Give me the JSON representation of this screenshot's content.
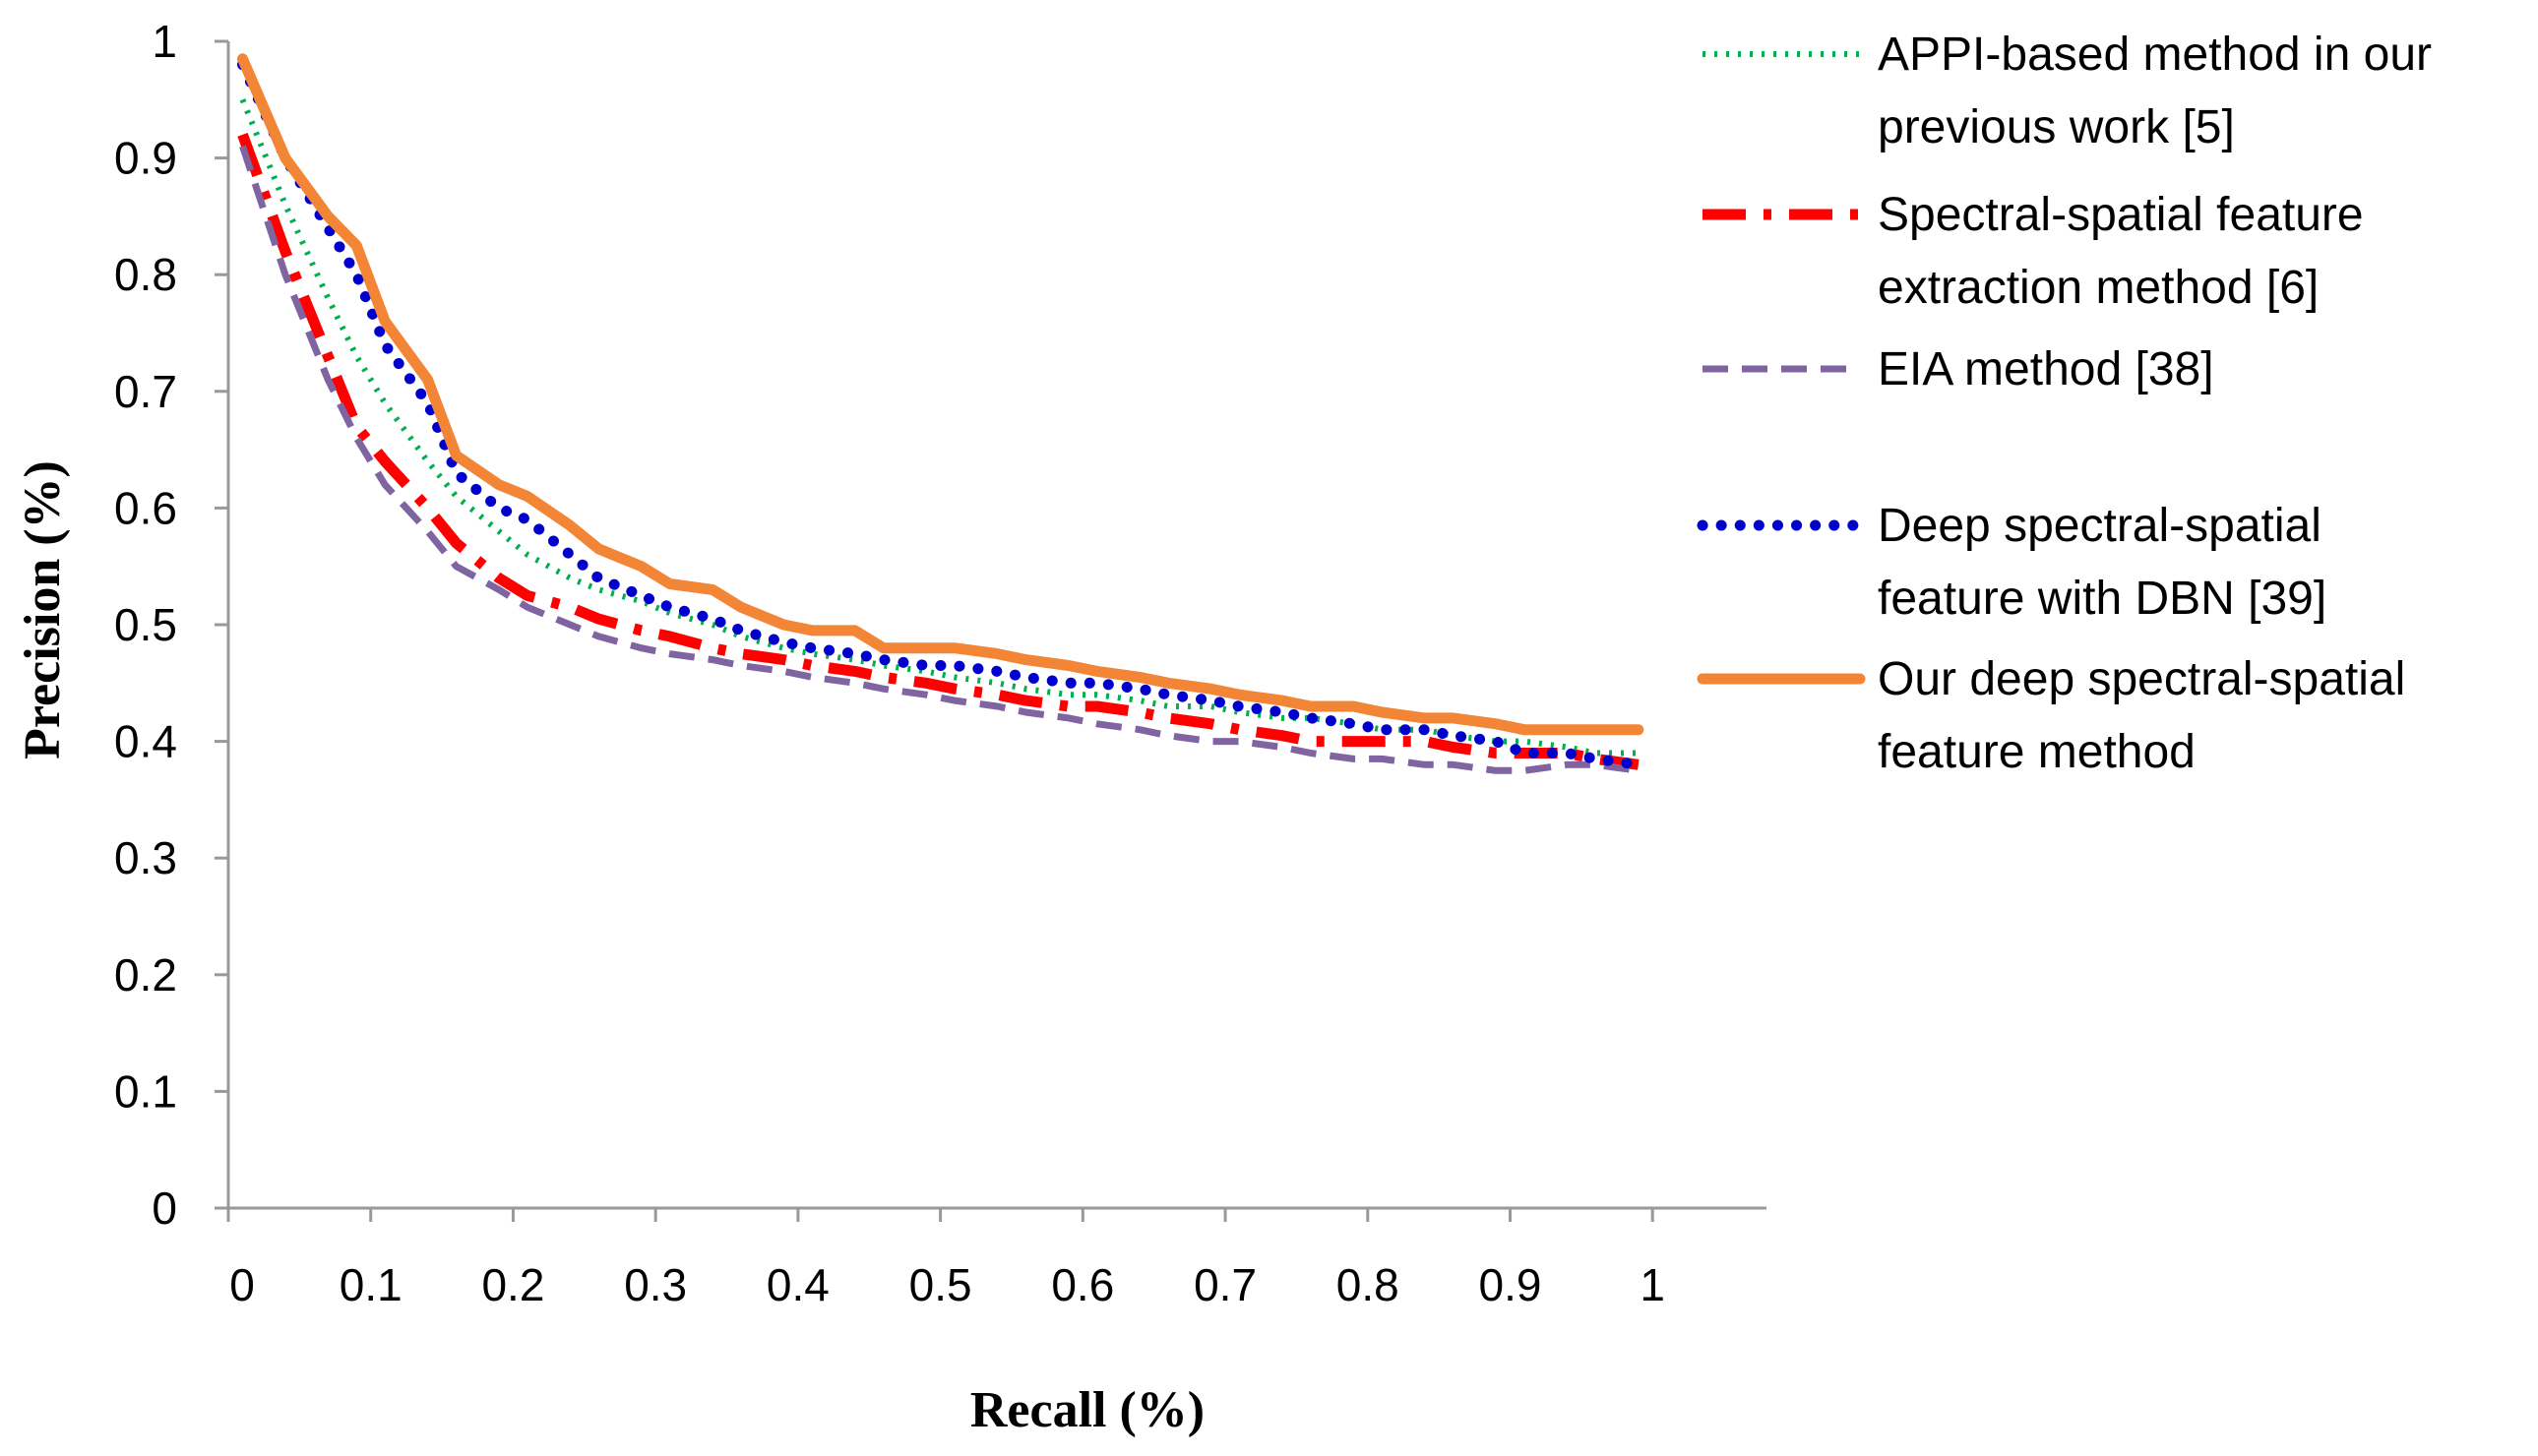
{
  "chart_data": {
    "type": "line",
    "title": "",
    "xlabel": "Recall (%)",
    "ylabel": "Precision (%)",
    "xlim": [
      0,
      1.08
    ],
    "ylim": [
      0,
      1
    ],
    "xtick_labels": [
      "0",
      "0.1",
      "0.2",
      "0.3",
      "0.4",
      "0.5",
      "0.6",
      "0.7",
      "0.8",
      "0.9",
      "1"
    ],
    "ytick_labels": [
      "0",
      "0.1",
      "0.2",
      "0.3",
      "0.4",
      "0.5",
      "0.6",
      "0.7",
      "0.8",
      "0.9",
      "1"
    ],
    "grid": false,
    "legend_position": "right",
    "x": [
      0.01,
      0.04,
      0.07,
      0.09,
      0.11,
      0.14,
      0.16,
      0.19,
      0.21,
      0.24,
      0.26,
      0.29,
      0.31,
      0.34,
      0.36,
      0.39,
      0.41,
      0.44,
      0.46,
      0.49,
      0.51,
      0.54,
      0.56,
      0.59,
      0.61,
      0.64,
      0.66,
      0.69,
      0.71,
      0.74,
      0.76,
      0.79,
      0.81,
      0.84,
      0.86,
      0.89,
      0.91,
      0.94,
      0.96,
      0.99
    ],
    "series": [
      {
        "name": "APPI-based method in our previous work [5]",
        "legend_lines": [
          "APPI-based method in our",
          "previous work [5]"
        ],
        "color": "#00b050",
        "style": "dotted",
        "values": [
          0.95,
          0.86,
          0.78,
          0.73,
          0.69,
          0.64,
          0.61,
          0.58,
          0.56,
          0.54,
          0.53,
          0.52,
          0.51,
          0.5,
          0.49,
          0.48,
          0.475,
          0.47,
          0.465,
          0.46,
          0.455,
          0.45,
          0.445,
          0.44,
          0.44,
          0.435,
          0.43,
          0.43,
          0.425,
          0.42,
          0.42,
          0.415,
          0.41,
          0.41,
          0.405,
          0.4,
          0.4,
          0.395,
          0.39,
          0.39
        ]
      },
      {
        "name": "Spectral-spatial feature extraction method [6]",
        "legend_lines": [
          "Spectral-spatial feature",
          "extraction method [6]"
        ],
        "color": "#ff0000",
        "style": "dashdot",
        "values": [
          0.92,
          0.82,
          0.73,
          0.67,
          0.64,
          0.6,
          0.57,
          0.54,
          0.525,
          0.515,
          0.505,
          0.495,
          0.49,
          0.48,
          0.475,
          0.47,
          0.465,
          0.46,
          0.455,
          0.45,
          0.445,
          0.44,
          0.435,
          0.43,
          0.43,
          0.425,
          0.42,
          0.415,
          0.41,
          0.405,
          0.4,
          0.4,
          0.4,
          0.4,
          0.395,
          0.39,
          0.39,
          0.39,
          0.385,
          0.38
        ]
      },
      {
        "name": "EIA method [38]",
        "legend_lines": [
          "EIA method [38]"
        ],
        "color": "#8064a2",
        "style": "dashed",
        "values": [
          0.91,
          0.8,
          0.71,
          0.66,
          0.62,
          0.58,
          0.55,
          0.53,
          0.515,
          0.5,
          0.49,
          0.48,
          0.475,
          0.47,
          0.465,
          0.46,
          0.455,
          0.45,
          0.445,
          0.44,
          0.435,
          0.43,
          0.425,
          0.42,
          0.415,
          0.41,
          0.405,
          0.4,
          0.4,
          0.395,
          0.39,
          0.385,
          0.385,
          0.38,
          0.38,
          0.375,
          0.375,
          0.38,
          0.38,
          0.375
        ]
      },
      {
        "name": "Deep spectral-spatial feature with DBN [39]",
        "legend_lines": [
          "Deep spectral-spatial",
          "feature with DBN [39]"
        ],
        "color": "#0000cc",
        "style": "dotted-round",
        "values": [
          0.98,
          0.9,
          0.84,
          0.8,
          0.74,
          0.69,
          0.63,
          0.6,
          0.59,
          0.56,
          0.54,
          0.525,
          0.515,
          0.505,
          0.495,
          0.485,
          0.48,
          0.475,
          0.47,
          0.465,
          0.465,
          0.46,
          0.455,
          0.45,
          0.45,
          0.445,
          0.44,
          0.435,
          0.43,
          0.425,
          0.42,
          0.415,
          0.41,
          0.41,
          0.405,
          0.4,
          0.39,
          0.39,
          0.385,
          0.38
        ]
      },
      {
        "name": "Our deep spectral-spatial feature method",
        "legend_lines": [
          "Our deep spectral-spatial",
          "feature method"
        ],
        "color": "#f28536",
        "style": "solid",
        "values": [
          0.985,
          0.9,
          0.85,
          0.825,
          0.76,
          0.71,
          0.645,
          0.62,
          0.61,
          0.585,
          0.565,
          0.55,
          0.535,
          0.53,
          0.515,
          0.5,
          0.495,
          0.495,
          0.48,
          0.48,
          0.48,
          0.475,
          0.47,
          0.465,
          0.46,
          0.455,
          0.45,
          0.445,
          0.44,
          0.435,
          0.43,
          0.43,
          0.425,
          0.42,
          0.42,
          0.415,
          0.41,
          0.41,
          0.41,
          0.41
        ]
      }
    ]
  }
}
